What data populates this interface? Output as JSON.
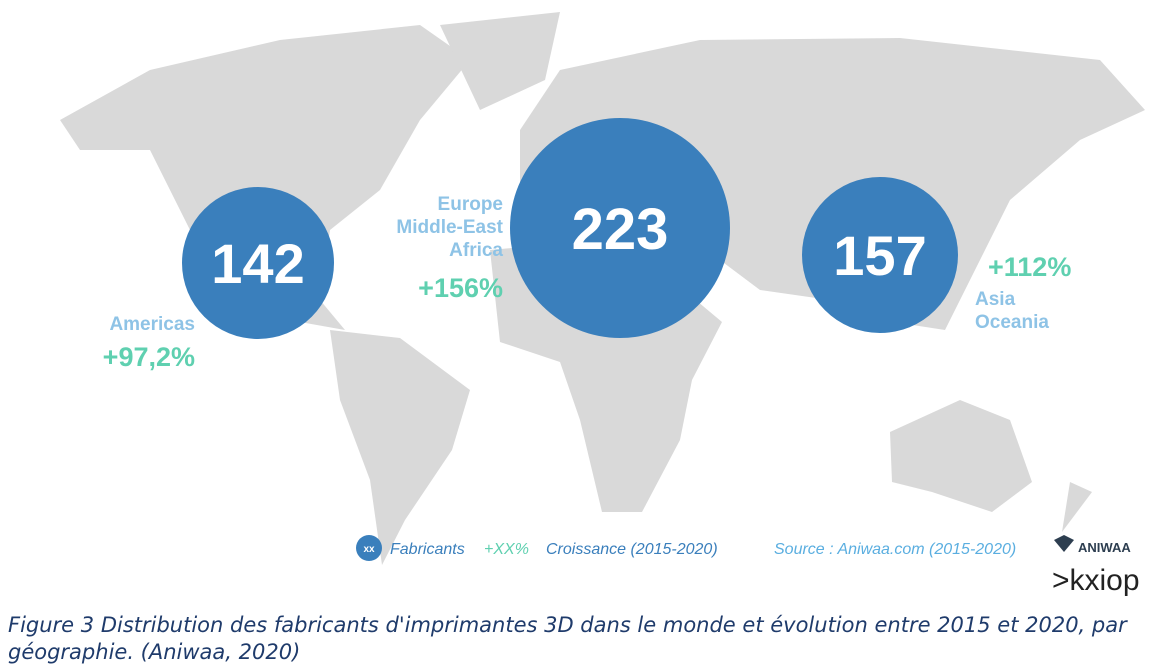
{
  "regions": [
    {
      "name_lines": [
        "Americas"
      ],
      "count": "142",
      "growth": "+97,2%"
    },
    {
      "name_lines": [
        "Europe",
        "Middle-East",
        "Africa"
      ],
      "count": "223",
      "growth": "+156%"
    },
    {
      "name_lines": [
        "Asia",
        "Oceania"
      ],
      "count": "157",
      "growth": "+112%"
    }
  ],
  "legend": {
    "symbol": "xx",
    "count_label": "Fabricants",
    "growth_symbol": "+XX%",
    "growth_label": "Croissance (2015-2020)",
    "source": "Source : Aniwaa.com (2015-2020)"
  },
  "logos": {
    "aniwaa": "ANIWAA",
    "kxiop": ">kxiop"
  },
  "caption": "Figure 3 Distribution des fabricants d'imprimantes 3D dans le monde et évolution entre 2015 et 2020, par géographie. (Aniwaa, 2020)"
}
